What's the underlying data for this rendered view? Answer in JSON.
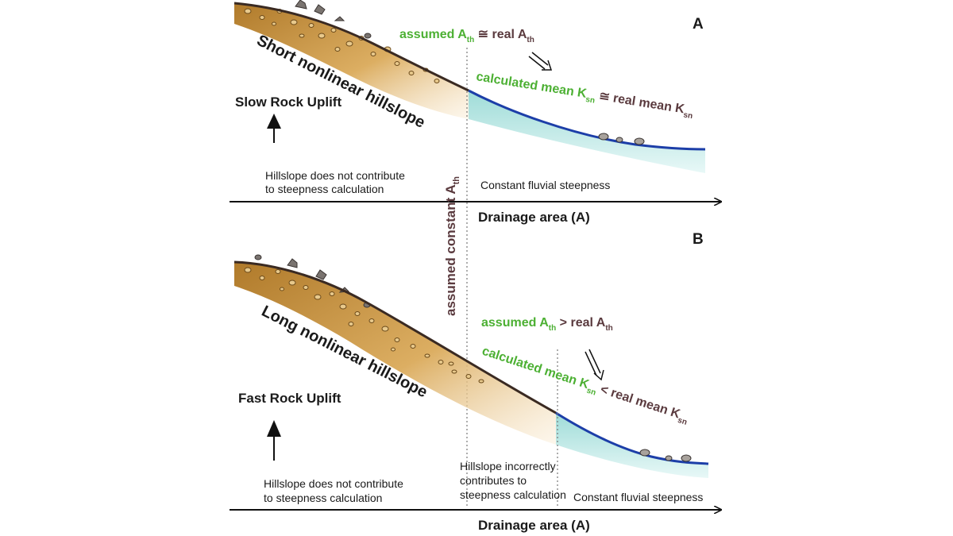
{
  "panels": [
    {
      "letter": "A",
      "hillslope_label": "Short nonlinear hillslope",
      "uplift_label": "Slow Rock Uplift",
      "hillslope_note": [
        "Hillslope does not contribute",
        "to steepness calculation"
      ],
      "fluvial_note": "Constant fluvial steepness",
      "assumed_eq": {
        "left": "assumed A",
        "left_sub": "th",
        "op": " ≅ ",
        "right": "real A",
        "right_sub": "th"
      },
      "calc_eq": {
        "left": "calculated mean K",
        "left_sub": "sn",
        "op": " ≅ ",
        "right": "real mean K",
        "right_sub": "sn"
      },
      "axis_label": "Drainage area (A)"
    },
    {
      "letter": "B",
      "hillslope_label": "Long nonlinear hillslope",
      "uplift_label": "Fast Rock Uplift",
      "hillslope_note": [
        "Hillslope does not contribute",
        "to steepness calculation"
      ],
      "incorrect_note": [
        "Hillslope incorrectly",
        "contributes to",
        "steepness calculation"
      ],
      "fluvial_note": "Constant fluvial steepness",
      "assumed_eq": {
        "left": "assumed A",
        "left_sub": "th",
        "op": " > ",
        "right": "real A",
        "right_sub": "th"
      },
      "calc_eq": {
        "left": "calculated mean K",
        "left_sub": "sn",
        "op": " < ",
        "right": "real mean K",
        "right_sub": "sn"
      },
      "axis_label": "Drainage area (A)"
    }
  ],
  "vertical_label": {
    "text": "assumed constant A",
    "sub": "th"
  },
  "colors": {
    "soil_top": "#b07a2a",
    "soil_bottom": "#f7e3b8",
    "river_line": "#1c3ea8",
    "water_top": "#9fdcd8",
    "water_bottom": "#e8f8f7",
    "green_text": "#4cb033",
    "maroon_text": "#5a3a3e"
  }
}
